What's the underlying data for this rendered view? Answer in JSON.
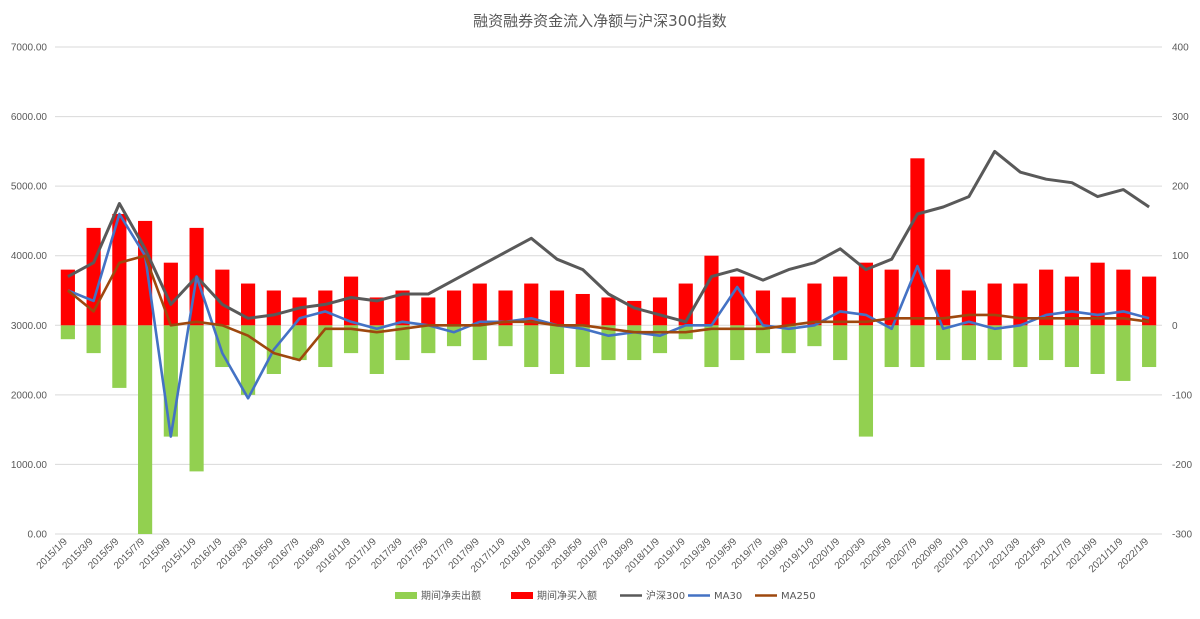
{
  "chart_data": {
    "type": "bar+line combo",
    "title": "融资融券资金流入净额与沪深300指数",
    "left_axis": {
      "min": 0,
      "max": 7000,
      "tick_labels": [
        "0.00",
        "1000.00",
        "2000.00",
        "3000.00",
        "4000.00",
        "5000.00",
        "6000.00",
        "7000.00"
      ]
    },
    "right_axis": {
      "min": -300,
      "max": 400,
      "tick_labels": [
        "-300",
        "-200",
        "-100",
        "0",
        "100",
        "200",
        "300",
        "400"
      ]
    },
    "grid": "horizontal gridlines on left axis",
    "legend_position": "bottom",
    "colors": {
      "net_sell": "#92d050",
      "net_buy": "#ff0000",
      "hs300": "#595959",
      "ma30": "#4472c4",
      "ma250": "#9e480e"
    },
    "x_categories": [
      "2015/1/9",
      "2015/3/9",
      "2015/5/9",
      "2015/7/9",
      "2015/9/9",
      "2015/11/9",
      "2016/1/9",
      "2016/3/9",
      "2016/5/9",
      "2016/7/9",
      "2016/9/9",
      "2016/11/9",
      "2017/1/9",
      "2017/3/9",
      "2017/5/9",
      "2017/7/9",
      "2017/9/9",
      "2017/11/9",
      "2018/1/9",
      "2018/3/9",
      "2018/5/9",
      "2018/7/9",
      "2018/9/9",
      "2018/11/9",
      "2019/1/9",
      "2019/3/9",
      "2019/5/9",
      "2019/7/9",
      "2019/9/9",
      "2019/11/9",
      "2020/1/9",
      "2020/3/9",
      "2020/5/9",
      "2020/7/9",
      "2020/9/9",
      "2020/11/9",
      "2021/1/9",
      "2021/3/9",
      "2021/5/9",
      "2021/7/9",
      "2021/9/9",
      "2021/11/9",
      "2022/1/9"
    ],
    "series": [
      {
        "name": "期间净卖出额",
        "type": "bar",
        "axis": "right",
        "values": [
          -20,
          -40,
          -90,
          -300,
          -160,
          -210,
          -60,
          -100,
          -70,
          -50,
          -60,
          -40,
          -70,
          -50,
          -40,
          -30,
          -50,
          -30,
          -60,
          -70,
          -60,
          -50,
          -50,
          -40,
          -20,
          -60,
          -50,
          -40,
          -40,
          -30,
          -50,
          -160,
          -60,
          -60,
          -50,
          -50,
          -50,
          -60,
          -50,
          -60,
          -70,
          -80,
          -60
        ]
      },
      {
        "name": "期间净买入额",
        "type": "bar",
        "axis": "right",
        "values": [
          80,
          140,
          160,
          150,
          90,
          140,
          80,
          60,
          50,
          40,
          50,
          70,
          40,
          50,
          40,
          50,
          60,
          50,
          60,
          50,
          45,
          40,
          35,
          40,
          60,
          100,
          70,
          50,
          40,
          60,
          70,
          90,
          80,
          240,
          80,
          50,
          60,
          60,
          80,
          70,
          90,
          80,
          70
        ]
      },
      {
        "name": "沪深300",
        "type": "line",
        "axis": "left",
        "values": [
          3700,
          3900,
          4750,
          4100,
          3300,
          3700,
          3300,
          3100,
          3150,
          3250,
          3300,
          3400,
          3350,
          3450,
          3450,
          3650,
          3850,
          4050,
          4250,
          3950,
          3800,
          3450,
          3250,
          3150,
          3050,
          3700,
          3800,
          3650,
          3800,
          3900,
          4100,
          3800,
          3950,
          4600,
          4700,
          4850,
          5500,
          5200,
          5100,
          5050,
          4850,
          4950,
          4700
        ]
      },
      {
        "name": "MA30",
        "type": "line",
        "axis": "left",
        "values": [
          3500,
          3350,
          4600,
          4000,
          1400,
          3700,
          2600,
          1950,
          2650,
          3100,
          3200,
          3050,
          2950,
          3050,
          3000,
          2900,
          3050,
          3050,
          3100,
          3000,
          2950,
          2850,
          2900,
          2850,
          3000,
          3000,
          3550,
          3000,
          2950,
          3000,
          3200,
          3150,
          2950,
          3850,
          2950,
          3050,
          2950,
          3000,
          3150,
          3200,
          3150,
          3200,
          3100
        ]
      },
      {
        "name": "MA250",
        "type": "line",
        "axis": "left",
        "values": [
          3500,
          3200,
          3900,
          4000,
          3000,
          3050,
          3000,
          2850,
          2600,
          2500,
          2950,
          2950,
          2900,
          2950,
          3000,
          3000,
          3000,
          3050,
          3050,
          3000,
          3000,
          2950,
          2900,
          2900,
          2900,
          2950,
          2950,
          2950,
          3000,
          3050,
          3050,
          3050,
          3100,
          3100,
          3100,
          3150,
          3150,
          3100,
          3100,
          3100,
          3100,
          3100,
          3050
        ]
      }
    ]
  }
}
